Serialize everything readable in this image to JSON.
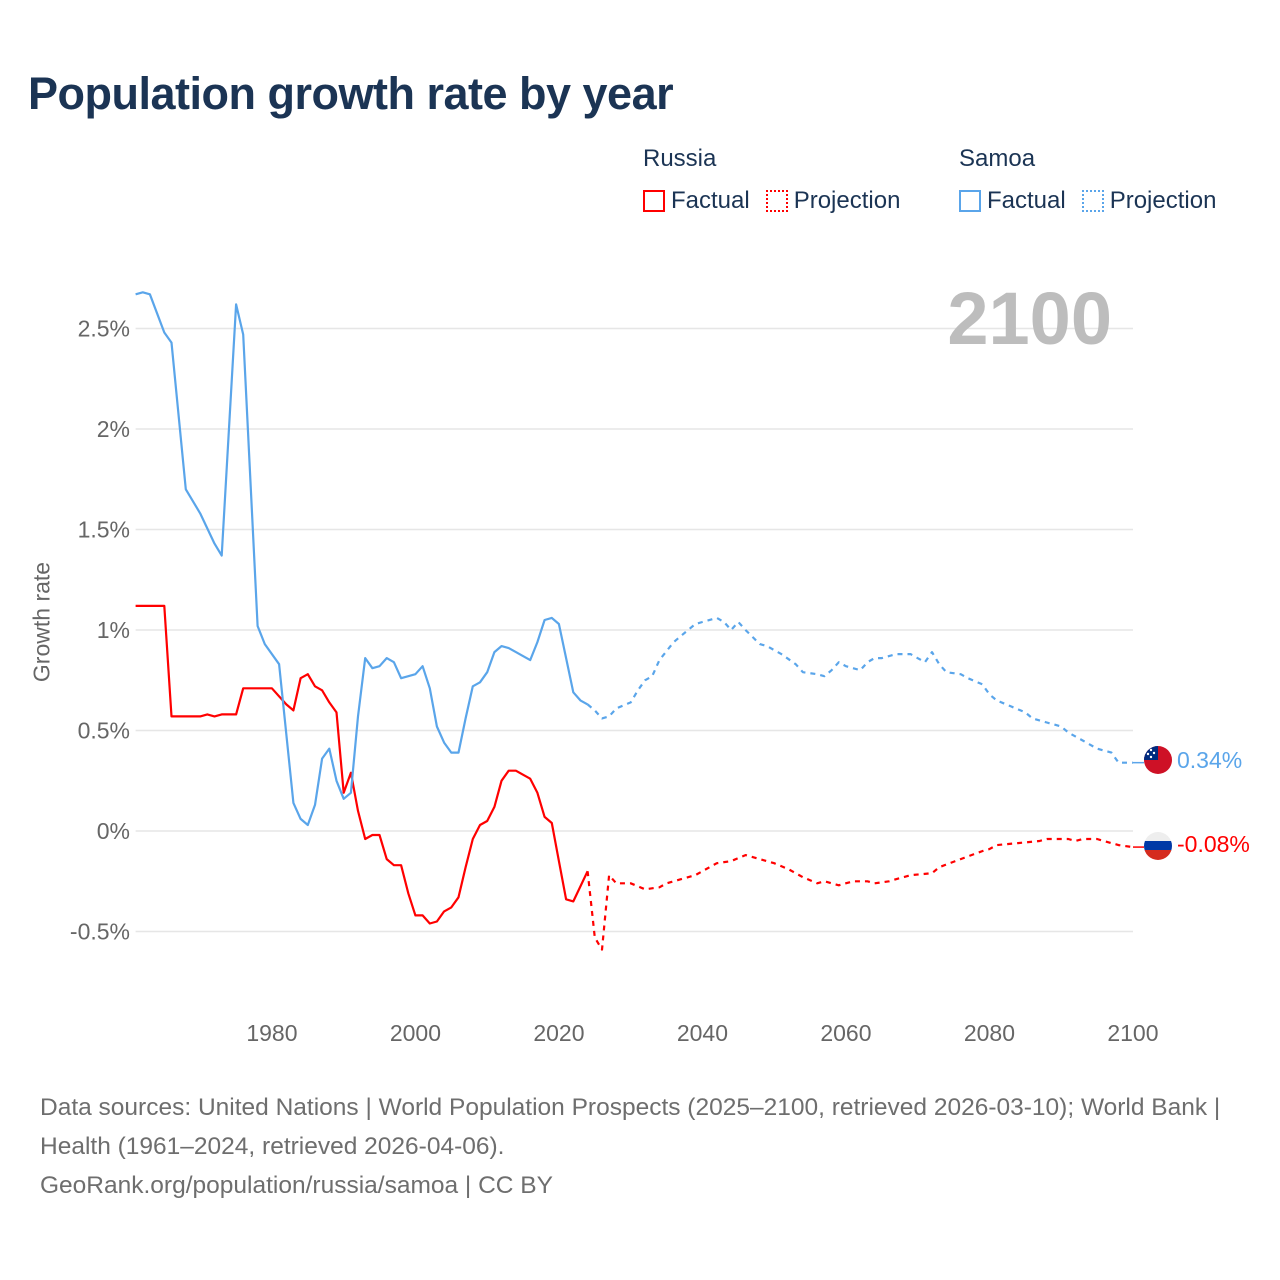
{
  "title": "Population growth rate by year",
  "legend": {
    "groups": [
      {
        "name": "Russia",
        "color": "#ff0000",
        "factual": "Factual",
        "projection": "Projection"
      },
      {
        "name": "Samoa",
        "color": "#5aa5ea",
        "factual": "Factual",
        "projection": "Projection"
      }
    ]
  },
  "current_year": "2100",
  "end_labels": {
    "samoa": "0.34%",
    "russia": "-0.08%"
  },
  "footer": {
    "sources": "Data sources: United Nations | World Population Prospects (2025–2100, retrieved 2026-03-10); World Bank | Health (1961–2024, retrieved 2026-04-06).",
    "credit": "GeoRank.org/population/russia/samoa | CC BY"
  },
  "chart_data": {
    "type": "line",
    "title": "Population growth rate by year",
    "xlabel": "",
    "ylabel": "Growth rate",
    "xlim": [
      1961,
      2100
    ],
    "ylim": [
      -0.75,
      2.75
    ],
    "x_ticks": [
      1980,
      2000,
      2020,
      2040,
      2060,
      2080,
      2100
    ],
    "y_ticks": [
      {
        "value": -0.5,
        "label": "-0.5%"
      },
      {
        "value": 0,
        "label": "0%"
      },
      {
        "value": 0.5,
        "label": "0.5%"
      },
      {
        "value": 1,
        "label": "1%"
      },
      {
        "value": 1.5,
        "label": "1.5%"
      },
      {
        "value": 2,
        "label": "2%"
      },
      {
        "value": 2.5,
        "label": "2.5%"
      }
    ],
    "grid": true,
    "legend_position": "top-right",
    "series": [
      {
        "name": "Russia Factual",
        "country": "Russia",
        "kind": "factual",
        "color": "#ff0000",
        "points": [
          [
            1961,
            1.12
          ],
          [
            1965,
            1.12
          ],
          [
            1966,
            0.57
          ],
          [
            1970,
            0.57
          ],
          [
            1971,
            0.58
          ],
          [
            1972,
            0.57
          ],
          [
            1973,
            0.58
          ],
          [
            1975,
            0.58
          ],
          [
            1976,
            0.71
          ],
          [
            1980,
            0.71
          ],
          [
            1982,
            0.63
          ],
          [
            1983,
            0.6
          ],
          [
            1984,
            0.76
          ],
          [
            1985,
            0.78
          ],
          [
            1986,
            0.72
          ],
          [
            1987,
            0.7
          ],
          [
            1988,
            0.64
          ],
          [
            1989,
            0.59
          ],
          [
            1990,
            0.19
          ],
          [
            1991,
            0.29
          ],
          [
            1992,
            0.1
          ],
          [
            1993,
            -0.04
          ],
          [
            1994,
            -0.02
          ],
          [
            1995,
            -0.02
          ],
          [
            1996,
            -0.14
          ],
          [
            1997,
            -0.17
          ],
          [
            1998,
            -0.17
          ],
          [
            1999,
            -0.31
          ],
          [
            2000,
            -0.42
          ],
          [
            2001,
            -0.42
          ],
          [
            2002,
            -0.46
          ],
          [
            2003,
            -0.45
          ],
          [
            2004,
            -0.4
          ],
          [
            2005,
            -0.38
          ],
          [
            2006,
            -0.33
          ],
          [
            2007,
            -0.18
          ],
          [
            2008,
            -0.04
          ],
          [
            2009,
            0.03
          ],
          [
            2010,
            0.05
          ],
          [
            2011,
            0.12
          ],
          [
            2012,
            0.25
          ],
          [
            2013,
            0.3
          ],
          [
            2014,
            0.3
          ],
          [
            2015,
            0.28
          ],
          [
            2016,
            0.26
          ],
          [
            2017,
            0.19
          ],
          [
            2018,
            0.07
          ],
          [
            2019,
            0.04
          ],
          [
            2020,
            -0.15
          ],
          [
            2021,
            -0.34
          ],
          [
            2022,
            -0.35
          ],
          [
            2024,
            -0.2
          ]
        ]
      },
      {
        "name": "Russia Projection",
        "country": "Russia",
        "kind": "projection",
        "color": "#ff0000",
        "points": [
          [
            2024,
            -0.2
          ],
          [
            2025,
            -0.53
          ],
          [
            2026,
            -0.59
          ],
          [
            2027,
            -0.22
          ],
          [
            2028,
            -0.26
          ],
          [
            2030,
            -0.26
          ],
          [
            2032,
            -0.29
          ],
          [
            2034,
            -0.28
          ],
          [
            2035,
            -0.26
          ],
          [
            2037,
            -0.24
          ],
          [
            2039,
            -0.22
          ],
          [
            2041,
            -0.18
          ],
          [
            2042,
            -0.16
          ],
          [
            2044,
            -0.15
          ],
          [
            2046,
            -0.12
          ],
          [
            2048,
            -0.14
          ],
          [
            2050,
            -0.16
          ],
          [
            2052,
            -0.19
          ],
          [
            2054,
            -0.23
          ],
          [
            2056,
            -0.26
          ],
          [
            2057,
            -0.25
          ],
          [
            2059,
            -0.27
          ],
          [
            2061,
            -0.25
          ],
          [
            2063,
            -0.25
          ],
          [
            2064,
            -0.26
          ],
          [
            2066,
            -0.25
          ],
          [
            2067,
            -0.24
          ],
          [
            2069,
            -0.22
          ],
          [
            2072,
            -0.21
          ],
          [
            2073,
            -0.18
          ],
          [
            2076,
            -0.14
          ],
          [
            2079,
            -0.1
          ],
          [
            2080,
            -0.09
          ],
          [
            2081,
            -0.07
          ],
          [
            2084,
            -0.06
          ],
          [
            2087,
            -0.05
          ],
          [
            2088,
            -0.04
          ],
          [
            2091,
            -0.04
          ],
          [
            2092,
            -0.05
          ],
          [
            2093,
            -0.04
          ],
          [
            2095,
            -0.04
          ],
          [
            2097,
            -0.06
          ],
          [
            2098,
            -0.07
          ],
          [
            2100,
            -0.08
          ]
        ]
      },
      {
        "name": "Samoa Factual",
        "country": "Samoa",
        "kind": "factual",
        "color": "#5aa5ea",
        "points": [
          [
            1961,
            2.67
          ],
          [
            1962,
            2.68
          ],
          [
            1963,
            2.67
          ],
          [
            1965,
            2.48
          ],
          [
            1966,
            2.43
          ],
          [
            1968,
            1.7
          ],
          [
            1970,
            1.58
          ],
          [
            1972,
            1.43
          ],
          [
            1973,
            1.37
          ],
          [
            1975,
            2.62
          ],
          [
            1976,
            2.47
          ],
          [
            1978,
            1.02
          ],
          [
            1979,
            0.93
          ],
          [
            1981,
            0.83
          ],
          [
            1983,
            0.14
          ],
          [
            1984,
            0.06
          ],
          [
            1985,
            0.03
          ],
          [
            1986,
            0.13
          ],
          [
            1987,
            0.36
          ],
          [
            1988,
            0.41
          ],
          [
            1989,
            0.25
          ],
          [
            1990,
            0.16
          ],
          [
            1991,
            0.19
          ],
          [
            1992,
            0.57
          ],
          [
            1993,
            0.86
          ],
          [
            1994,
            0.81
          ],
          [
            1995,
            0.82
          ],
          [
            1996,
            0.86
          ],
          [
            1997,
            0.84
          ],
          [
            1998,
            0.76
          ],
          [
            1999,
            0.77
          ],
          [
            2000,
            0.78
          ],
          [
            2001,
            0.82
          ],
          [
            2002,
            0.71
          ],
          [
            2003,
            0.52
          ],
          [
            2004,
            0.44
          ],
          [
            2005,
            0.39
          ],
          [
            2006,
            0.39
          ],
          [
            2007,
            0.56
          ],
          [
            2008,
            0.72
          ],
          [
            2009,
            0.74
          ],
          [
            2010,
            0.79
          ],
          [
            2011,
            0.89
          ],
          [
            2012,
            0.92
          ],
          [
            2013,
            0.91
          ],
          [
            2014,
            0.89
          ],
          [
            2015,
            0.87
          ],
          [
            2016,
            0.85
          ],
          [
            2017,
            0.94
          ],
          [
            2018,
            1.05
          ],
          [
            2019,
            1.06
          ],
          [
            2020,
            1.03
          ],
          [
            2021,
            0.86
          ],
          [
            2022,
            0.69
          ],
          [
            2023,
            0.65
          ],
          [
            2024,
            0.63
          ]
        ]
      },
      {
        "name": "Samoa Projection",
        "country": "Samoa",
        "kind": "projection",
        "color": "#5aa5ea",
        "points": [
          [
            2024,
            0.63
          ],
          [
            2025,
            0.6
          ],
          [
            2026,
            0.56
          ],
          [
            2027,
            0.57
          ],
          [
            2028,
            0.61
          ],
          [
            2030,
            0.64
          ],
          [
            2031,
            0.7
          ],
          [
            2032,
            0.75
          ],
          [
            2033,
            0.77
          ],
          [
            2034,
            0.85
          ],
          [
            2036,
            0.94
          ],
          [
            2037,
            0.97
          ],
          [
            2039,
            1.03
          ],
          [
            2040,
            1.04
          ],
          [
            2042,
            1.06
          ],
          [
            2043,
            1.04
          ],
          [
            2044,
            1.0
          ],
          [
            2045,
            1.04
          ],
          [
            2046,
            1.0
          ],
          [
            2048,
            0.93
          ],
          [
            2049,
            0.92
          ],
          [
            2051,
            0.88
          ],
          [
            2053,
            0.83
          ],
          [
            2054,
            0.79
          ],
          [
            2056,
            0.78
          ],
          [
            2057,
            0.77
          ],
          [
            2058,
            0.8
          ],
          [
            2059,
            0.84
          ],
          [
            2060,
            0.82
          ],
          [
            2062,
            0.8
          ],
          [
            2063,
            0.84
          ],
          [
            2064,
            0.86
          ],
          [
            2065,
            0.86
          ],
          [
            2066,
            0.87
          ],
          [
            2067,
            0.88
          ],
          [
            2069,
            0.88
          ],
          [
            2071,
            0.84
          ],
          [
            2072,
            0.89
          ],
          [
            2073,
            0.83
          ],
          [
            2074,
            0.79
          ],
          [
            2076,
            0.78
          ],
          [
            2077,
            0.76
          ],
          [
            2079,
            0.73
          ],
          [
            2080,
            0.68
          ],
          [
            2081,
            0.65
          ],
          [
            2083,
            0.62
          ],
          [
            2085,
            0.59
          ],
          [
            2086,
            0.56
          ],
          [
            2088,
            0.54
          ],
          [
            2090,
            0.52
          ],
          [
            2091,
            0.49
          ],
          [
            2093,
            0.45
          ],
          [
            2095,
            0.41
          ],
          [
            2097,
            0.39
          ],
          [
            2098,
            0.34
          ],
          [
            2100,
            0.34
          ]
        ]
      }
    ]
  }
}
